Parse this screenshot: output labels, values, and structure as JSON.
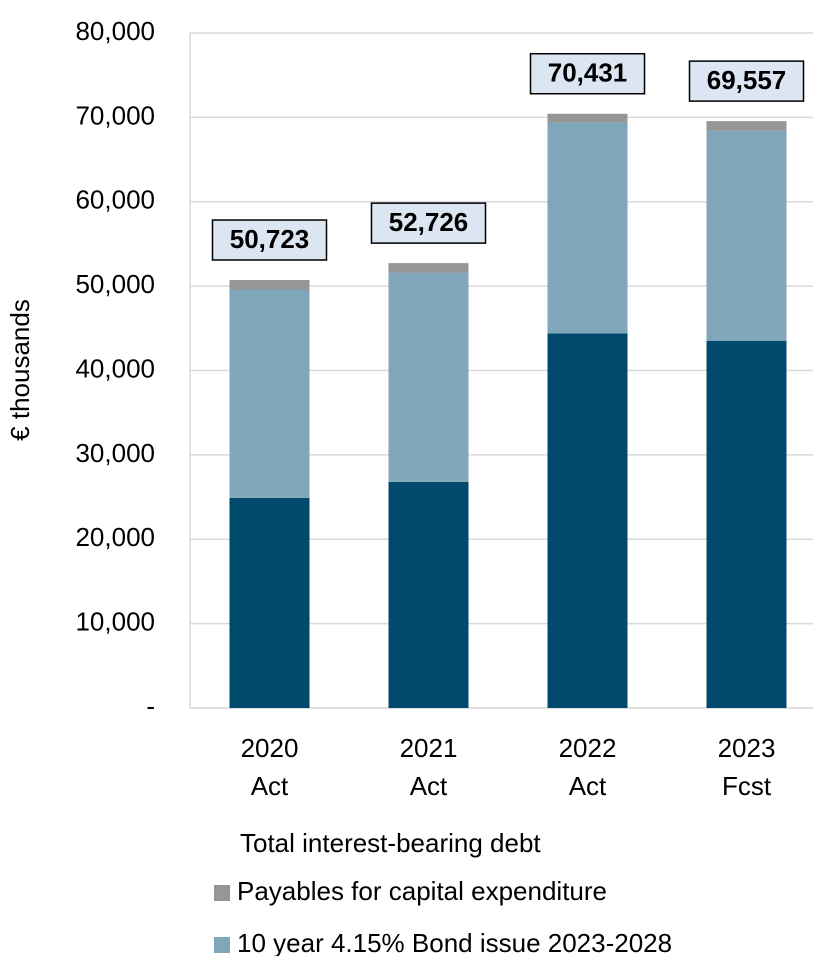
{
  "chart_data": {
    "type": "stacked_bar",
    "y_axis_label": "€ thousands",
    "categories": [
      [
        "2020",
        "Act"
      ],
      [
        "2021",
        "Act"
      ],
      [
        "2022",
        "Act"
      ],
      [
        "2023",
        "Fcst"
      ]
    ],
    "series": [
      {
        "color": "#004a6e",
        "values": [
          24900,
          26800,
          44400,
          43500
        ]
      },
      {
        "name": "10 year 4.15% Bond issue 2023-2028",
        "color": "#7fa6b9",
        "values": [
          24700,
          24800,
          25000,
          24900
        ]
      },
      {
        "name": "Payables for capital expenditure",
        "color": "#969696",
        "values": [
          1123,
          1126,
          1031,
          1157
        ]
      }
    ],
    "totals": [
      50723,
      52726,
      70431,
      69557
    ],
    "totals_labels": [
      "50,723",
      "52,726",
      "70,431",
      "69,557"
    ],
    "legend_title": "Total interest-bearing debt",
    "ylim": [
      0,
      80000
    ],
    "yticks": [
      {
        "value": 0,
        "label": "-"
      },
      {
        "value": 10000,
        "label": "10,000"
      },
      {
        "value": 20000,
        "label": "20,000"
      },
      {
        "value": 30000,
        "label": "30,000"
      },
      {
        "value": 40000,
        "label": "40,000"
      },
      {
        "value": 50000,
        "label": "50,000"
      },
      {
        "value": 60000,
        "label": "60,000"
      },
      {
        "value": 70000,
        "label": "70,000"
      },
      {
        "value": 80000,
        "label": "80,000"
      }
    ],
    "grid": true
  }
}
